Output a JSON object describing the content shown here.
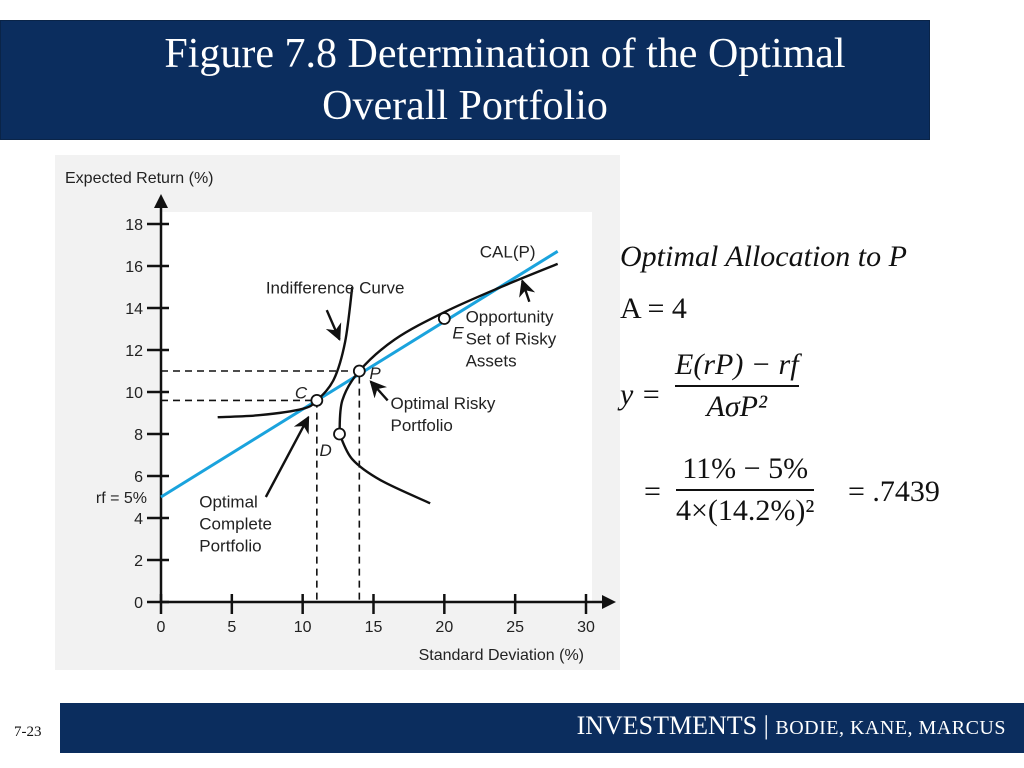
{
  "slide": {
    "title_line1": "Figure 7.8 Determination of the Optimal",
    "title_line2": "Overall Portfolio",
    "page_number": "7-23",
    "footer_main": "INVESTMENTS",
    "footer_sep": " | ",
    "footer_authors": "BODIE, KANE, MARCUS"
  },
  "formulas": {
    "heading": "Optimal Allocation to P",
    "risk_aversion": "A = 4",
    "y_lhs": "y =",
    "y_numerator": "E(rP) − rf",
    "y_denominator": "AσP²",
    "eq_sign": "=",
    "num_numerator": "11% − 5%",
    "num_denominator": "4×(14.2%)²",
    "result": "= .7439"
  },
  "chart_data": {
    "type": "line",
    "xlabel": "Standard Deviation (%)",
    "ylabel": "Expected Return (%)",
    "xlim": [
      0,
      30
    ],
    "ylim": [
      0,
      18
    ],
    "x_ticks": [
      "0",
      "5",
      "10",
      "15",
      "20",
      "25",
      "30"
    ],
    "y_ticks": [
      "0",
      "2",
      "4",
      "6",
      "8",
      "10",
      "12",
      "14",
      "16",
      "18"
    ],
    "rf_label": "rf = 5%",
    "rf_value": 5,
    "grid": false,
    "colors": {
      "cal": "#1aa3dd",
      "curves": "#111111",
      "axes": "#111111"
    },
    "series": [
      {
        "name": "CAL(P)",
        "points": [
          [
            0,
            5
          ],
          [
            28,
            16.7
          ]
        ]
      },
      {
        "name": "Opportunity Set of Risky Assets",
        "points": [
          [
            12.6,
            8.0
          ],
          [
            12.8,
            9.6
          ],
          [
            14.0,
            11.0
          ],
          [
            16.5,
            12.5
          ],
          [
            20.0,
            13.8
          ],
          [
            24.0,
            15.0
          ],
          [
            28.0,
            16.1
          ]
        ]
      },
      {
        "name": "Indifference Curve",
        "points": [
          [
            4.0,
            8.8
          ],
          [
            7.0,
            8.9
          ],
          [
            10.0,
            9.2
          ],
          [
            11.0,
            9.6
          ],
          [
            12.2,
            10.6
          ],
          [
            13.0,
            12.4
          ],
          [
            13.5,
            15.0
          ]
        ]
      },
      {
        "name": "Lower Risky Curve",
        "points": [
          [
            12.6,
            8.0
          ],
          [
            13.5,
            6.8
          ],
          [
            15.5,
            5.8
          ],
          [
            19.0,
            4.7
          ]
        ]
      }
    ],
    "points": [
      {
        "label": "C",
        "x": 11.0,
        "y": 9.6
      },
      {
        "label": "P",
        "x": 14.0,
        "y": 11.0
      },
      {
        "label": "E",
        "x": 20.0,
        "y": 13.5
      },
      {
        "label": "D",
        "x": 12.6,
        "y": 8.0
      }
    ],
    "guides": [
      {
        "x": 11.0,
        "y": 9.6
      },
      {
        "x": 14.0,
        "y": 11.0
      }
    ],
    "annotations": [
      {
        "text_lines": [
          "CAL(P)"
        ],
        "anchor": [
          22.5,
          16.4
        ]
      },
      {
        "text_lines": [
          "Indifference Curve"
        ],
        "anchor": [
          7.4,
          14.7
        ]
      },
      {
        "text_lines": [
          "Opportunity",
          "Set of Risky",
          "Assets"
        ],
        "anchor": [
          21.5,
          13.3
        ]
      },
      {
        "text_lines": [
          "Optimal Risky",
          "Portfolio"
        ],
        "anchor": [
          16.2,
          9.2
        ]
      },
      {
        "text_lines": [
          "Optimal",
          "Complete",
          "Portfolio"
        ],
        "anchor": [
          2.7,
          4.5
        ]
      }
    ],
    "arrows": [
      {
        "from": [
          11.7,
          13.9
        ],
        "to": [
          12.6,
          12.5
        ]
      },
      {
        "from": [
          26.0,
          14.3
        ],
        "to": [
          25.5,
          15.3
        ]
      },
      {
        "from": [
          16.0,
          9.6
        ],
        "to": [
          14.8,
          10.5
        ]
      },
      {
        "from": [
          7.4,
          5.0
        ],
        "to": [
          10.4,
          8.8
        ]
      }
    ]
  }
}
